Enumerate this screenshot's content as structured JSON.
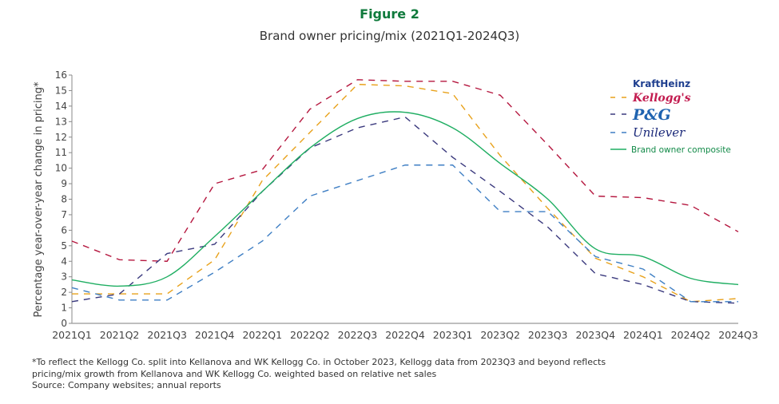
{
  "figure_label": "Figure 2",
  "chart_data": {
    "type": "line",
    "title": "Brand owner pricing/mix (2021Q1-2024Q3)",
    "xlabel": "",
    "ylabel": "Percentage year-over-year change in pricing*",
    "ylim": [
      0,
      16
    ],
    "yticks": [
      0,
      1,
      2,
      3,
      4,
      5,
      6,
      7,
      8,
      9,
      10,
      11,
      12,
      13,
      14,
      15,
      16
    ],
    "grid": false,
    "legend": "top-right",
    "categories": [
      "2021Q1",
      "2021Q2",
      "2021Q3",
      "2021Q4",
      "2022Q1",
      "2022Q2",
      "2022Q3",
      "2022Q4",
      "2023Q1",
      "2023Q2",
      "2023Q3",
      "2023Q4",
      "2024Q1",
      "2024Q2",
      "2024Q3"
    ],
    "series": [
      {
        "name": "KraftHeinz",
        "color": "#b5173f",
        "style": "dashed",
        "values": [
          5.3,
          4.1,
          4.0,
          9.0,
          9.9,
          13.8,
          15.7,
          15.6,
          15.6,
          14.7,
          11.5,
          8.2,
          8.1,
          7.6,
          5.9
        ]
      },
      {
        "name": "Kellogg's",
        "color": "#e8a21c",
        "style": "dashed",
        "values": [
          1.9,
          1.9,
          1.9,
          4.1,
          9.2,
          12.3,
          15.4,
          15.3,
          14.8,
          10.8,
          7.4,
          4.2,
          3.0,
          1.4,
          1.6
        ]
      },
      {
        "name": "P&G",
        "color": "#3b3a7e",
        "style": "dashed",
        "values": [
          1.4,
          1.9,
          4.5,
          5.1,
          8.5,
          11.3,
          12.6,
          13.3,
          10.7,
          8.5,
          6.2,
          3.2,
          2.5,
          1.4,
          1.3
        ]
      },
      {
        "name": "Unilever",
        "color": "#3f7fc4",
        "style": "dashed",
        "values": [
          2.3,
          1.5,
          1.5,
          3.3,
          5.3,
          8.2,
          9.2,
          10.2,
          10.2,
          7.2,
          7.2,
          4.3,
          3.5,
          1.4,
          1.4
        ]
      },
      {
        "name": "Brand owner composite",
        "color": "#1fae62",
        "style": "solid",
        "values": [
          2.8,
          2.4,
          3.0,
          5.6,
          8.5,
          11.3,
          13.2,
          13.6,
          12.6,
          10.3,
          8.0,
          4.8,
          4.3,
          2.9,
          2.5
        ]
      }
    ]
  },
  "footnote": {
    "line1": "*To reflect the Kellogg Co. split into Kellanova and WK Kellogg Co. in October 2023, Kellogg data from 2023Q3 and beyond reflects",
    "line2": "pricing/mix growth from Kellanova and WK Kellogg Co. weighted based on relative net sales",
    "source": "Source: Company websites; annual reports"
  }
}
